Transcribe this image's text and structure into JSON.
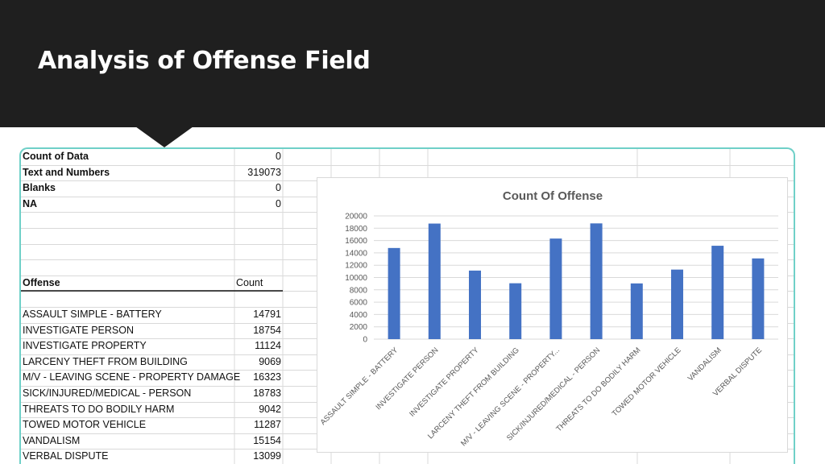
{
  "slide": {
    "title": "Analysis of Offense Field"
  },
  "summary": [
    {
      "label": "Count of Data",
      "value": "0"
    },
    {
      "label": "Text and Numbers",
      "value": "319073"
    },
    {
      "label": "Blanks",
      "value": "0"
    },
    {
      "label": "NA",
      "value": "0"
    }
  ],
  "table": {
    "header_offense": "Offense",
    "header_count": "Count",
    "rows": [
      {
        "offense": "ASSAULT SIMPLE - BATTERY",
        "count": "14791"
      },
      {
        "offense": "INVESTIGATE PERSON",
        "count": "18754"
      },
      {
        "offense": "INVESTIGATE PROPERTY",
        "count": "11124"
      },
      {
        "offense": "LARCENY THEFT FROM BUILDING",
        "count": "9069"
      },
      {
        "offense": "M/V - LEAVING SCENE - PROPERTY DAMAGE",
        "count": "16323"
      },
      {
        "offense": "SICK/INJURED/MEDICAL - PERSON",
        "count": "18783"
      },
      {
        "offense": "THREATS TO DO BODILY HARM",
        "count": "9042"
      },
      {
        "offense": "TOWED MOTOR VEHICLE",
        "count": "11287"
      },
      {
        "offense": "VANDALISM",
        "count": "15154"
      },
      {
        "offense": "VERBAL DISPUTE",
        "count": "13099"
      }
    ]
  },
  "colors": {
    "header_bg": "#1f1f1f",
    "frame": "#6fd0c8",
    "bar": "#4472c4"
  },
  "chart_data": {
    "type": "bar",
    "title": "Count Of Offense",
    "categories": [
      "ASSAULT SIMPLE - BATTERY",
      "INVESTIGATE PERSON",
      "INVESTIGATE PROPERTY",
      "LARCENY THEFT FROM BUILDING",
      "M/V - LEAVING SCENE - PROPERTY...",
      "SICK/INJURED/MEDICAL - PERSON",
      "THREATS TO DO BODILY HARM",
      "TOWED MOTOR VEHICLE",
      "VANDALISM",
      "VERBAL DISPUTE"
    ],
    "values": [
      14791,
      18754,
      11124,
      9069,
      16323,
      18783,
      9042,
      11287,
      15154,
      13099
    ],
    "yticks": [
      "0",
      "2000",
      "4000",
      "6000",
      "8000",
      "10000",
      "12000",
      "14000",
      "16000",
      "18000",
      "20000"
    ],
    "ylim": [
      0,
      20000
    ],
    "xlabel": "",
    "ylabel": ""
  }
}
